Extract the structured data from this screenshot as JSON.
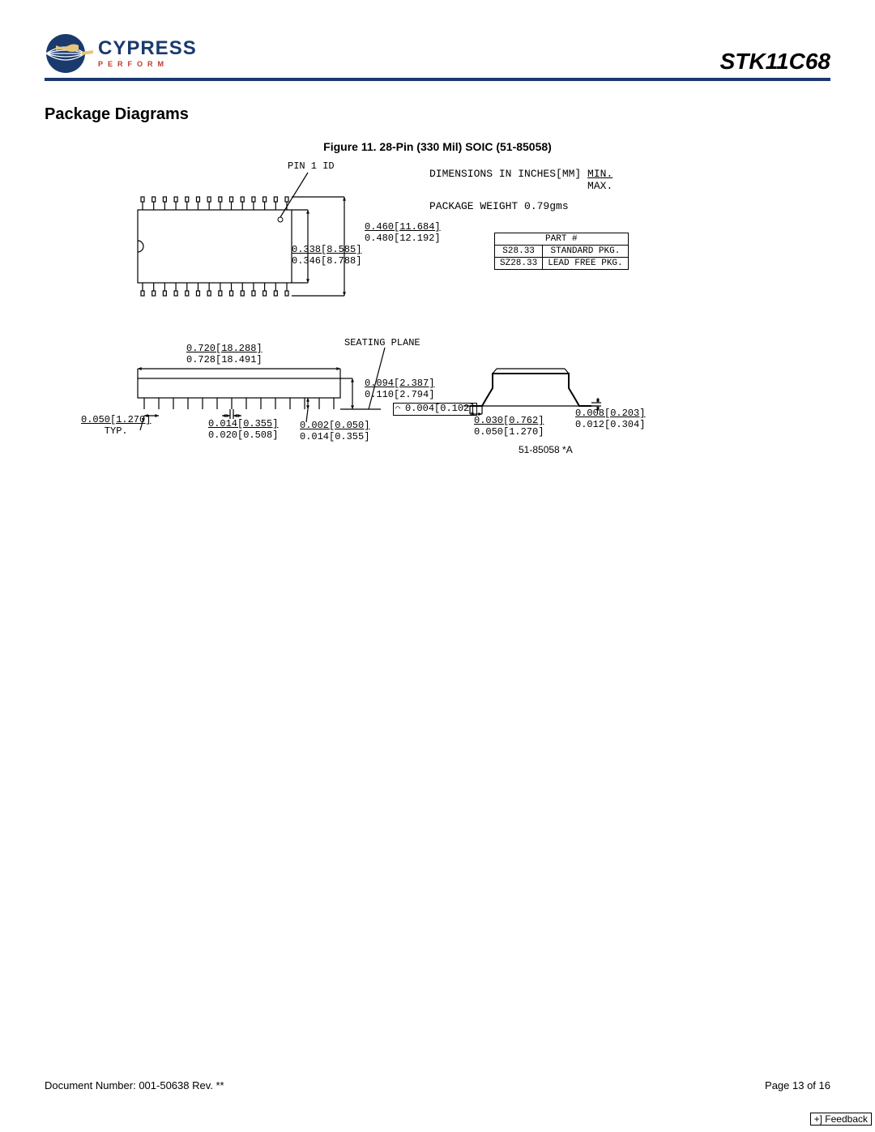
{
  "header": {
    "brand": "CYPRESS",
    "tagline": "PERFORM",
    "part_number": "STK11C68"
  },
  "section": {
    "title": "Package Diagrams",
    "figure_caption": "Figure 11.  28-Pin (330 Mil) SOIC (51-85058)"
  },
  "diagram": {
    "pin1_label": "PIN 1 ID",
    "notes": {
      "dimensions_line": "DIMENSIONS IN INCHES[MM]",
      "min": "MIN.",
      "max": "MAX.",
      "weight": "PACKAGE WEIGHT 0.79gms"
    },
    "part_table": {
      "header": "PART #",
      "rows": [
        [
          "S28.33",
          "STANDARD PKG."
        ],
        [
          "SZ28.33",
          "LEAD FREE PKG."
        ]
      ]
    },
    "seating_plane_label": "SEATING PLANE",
    "flat_symbol_dim": "0.004[0.102]",
    "revision": "51-85058 *A",
    "top_view": {
      "inner_width_min": "0.338[8.585]",
      "inner_width_max": "0.346[8.788]",
      "outer_width_min": "0.460[11.684]",
      "outer_width_max": "0.480[12.192]"
    },
    "side_view": {
      "length_min": "0.720[18.288]",
      "length_max": "0.728[18.491]",
      "height_min": "0.094[2.387]",
      "height_max": "0.110[2.794]",
      "pitch": "0.050[1.270]",
      "pitch_note": "TYP.",
      "lead_w_min": "0.014[0.355]",
      "lead_w_max": "0.020[0.508]",
      "standoff_min": "0.002[0.050]",
      "standoff_max": "0.014[0.355]"
    },
    "end_view": {
      "foot_min": "0.030[0.762]",
      "foot_max": "0.050[1.270]",
      "thk_min": "0.008[0.203]",
      "thk_max": "0.012[0.304]"
    },
    "style": {
      "stroke": "#000000",
      "stroke_width": 1.2,
      "pin_count": 14
    }
  },
  "footer": {
    "doc_number": "Document Number: 001-50638 Rev. **",
    "page": "Page 13 of 16",
    "feedback": "+] Feedback"
  }
}
